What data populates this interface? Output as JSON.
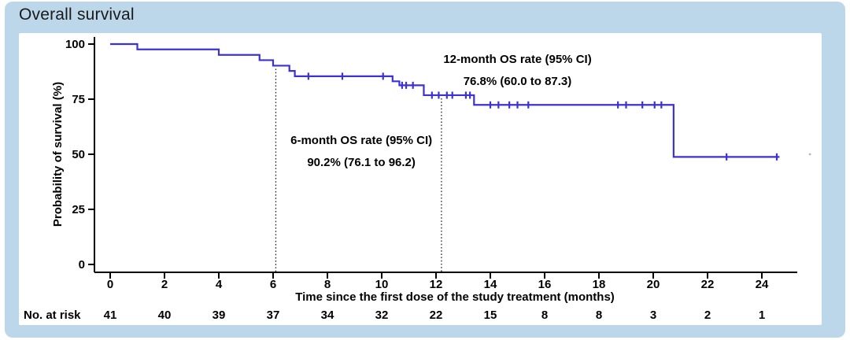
{
  "page": {
    "title": "Overall survival"
  },
  "colors": {
    "card_bg": "#bdd7ea",
    "panel_bg": "#ffffff",
    "curve": "#3c32d2",
    "axis": "#000000",
    "dotted": "#222222",
    "title_text": "#1a1a1a"
  },
  "chart_data": {
    "type": "line",
    "subtype": "kaplan-meier-step",
    "title": "Overall survival",
    "xlabel": "Time since the first dose of the study treatment (months)",
    "ylabel": "Probability of survival (%)",
    "x_ticks": [
      0,
      2,
      4,
      6,
      8,
      10,
      12,
      14,
      16,
      18,
      20,
      22,
      24
    ],
    "y_ticks": [
      0,
      25,
      50,
      75,
      100
    ],
    "xlim": [
      0,
      25.3
    ],
    "ylim": [
      0,
      100
    ],
    "grid": false,
    "legend": "none",
    "series": [
      {
        "name": "Overall survival",
        "color": "#3c32d2",
        "steps": [
          {
            "start": 0.0,
            "end": 1.0,
            "pct": 100.0,
            "censors": []
          },
          {
            "start": 1.0,
            "end": 4.0,
            "pct": 97.6,
            "censors": []
          },
          {
            "start": 4.0,
            "end": 5.5,
            "pct": 95.1,
            "censors": []
          },
          {
            "start": 5.5,
            "end": 6.0,
            "pct": 92.7,
            "censors": []
          },
          {
            "start": 6.0,
            "end": 6.6,
            "pct": 90.2,
            "censors": []
          },
          {
            "start": 6.6,
            "end": 6.8,
            "pct": 87.8,
            "censors": []
          },
          {
            "start": 6.8,
            "end": 10.4,
            "pct": 85.4,
            "censors": [
              7.3,
              8.55,
              10.05
            ]
          },
          {
            "start": 10.4,
            "end": 10.65,
            "pct": 83.1,
            "censors": []
          },
          {
            "start": 10.65,
            "end": 11.55,
            "pct": 81.3,
            "censors": [
              10.75,
              10.9,
              11.15
            ]
          },
          {
            "start": 11.55,
            "end": 13.4,
            "pct": 76.8,
            "censors": [
              11.85,
              12.1,
              12.4,
              12.6,
              13.1,
              13.25
            ]
          },
          {
            "start": 13.4,
            "end": 20.75,
            "pct": 72.4,
            "censors": [
              14.0,
              14.3,
              14.7,
              15.0,
              15.4,
              18.7,
              19.0,
              19.6,
              20.05,
              20.3
            ]
          },
          {
            "start": 20.75,
            "end": 24.65,
            "pct": 48.8,
            "censors": [
              22.7,
              24.55
            ]
          }
        ]
      }
    ],
    "dotted_reference_lines": [
      {
        "month": 6.1,
        "from_pct": 90.2
      },
      {
        "month": 12.2,
        "from_pct": 76.8
      }
    ],
    "annotations": [
      {
        "x_month": 15.0,
        "y_pct": 91.5,
        "lines": [
          "12-month OS rate (95% CI)",
          "76.8% (60.0 to 87.3)"
        ]
      },
      {
        "x_month": 9.25,
        "y_pct": 54.6,
        "lines": [
          "6-month OS rate (95% CI)",
          "90.2% (76.1 to 96.2)"
        ]
      }
    ],
    "risk_table": {
      "label": "No. at risk",
      "times": [
        0,
        2,
        4,
        6,
        8,
        10,
        12,
        14,
        16,
        18,
        20,
        22,
        24
      ],
      "values": [
        41,
        40,
        39,
        37,
        34,
        32,
        22,
        15,
        8,
        8,
        3,
        2,
        1
      ]
    },
    "stray_mark": {
      "month": 25.77,
      "pct": 50
    }
  }
}
